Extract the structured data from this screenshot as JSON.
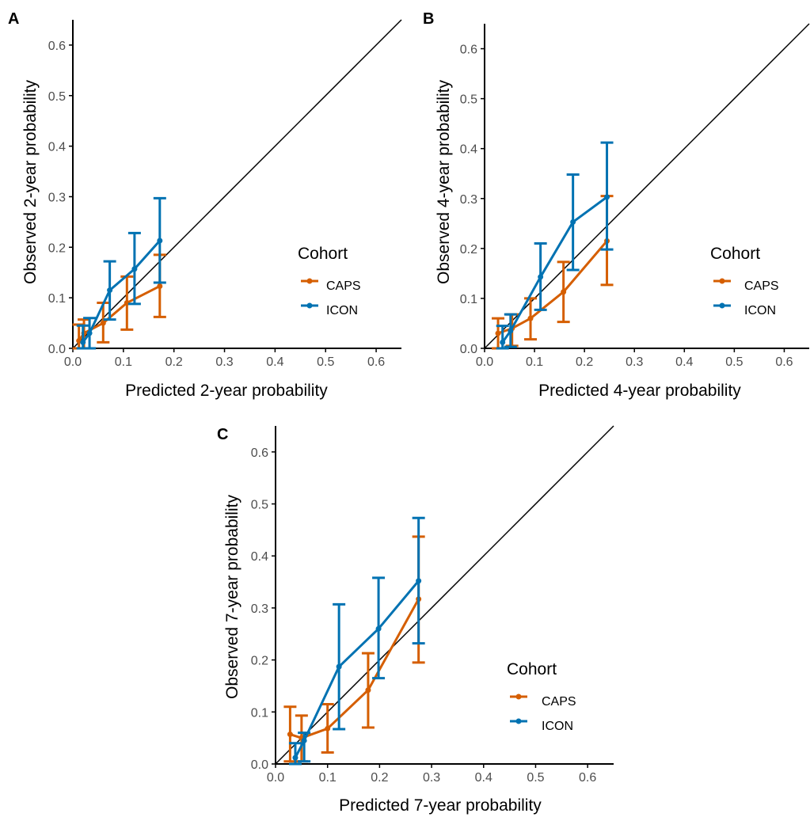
{
  "colors": {
    "CAPS": "#d55e00",
    "ICON": "#0072b2",
    "reference_line": "#000000",
    "axis": "#000000",
    "tick_text": "#4d4d4d"
  },
  "chart_data": [
    {
      "panel": "A",
      "type": "line",
      "xlabel": "Predicted 2-year probability",
      "ylabel": "Observed 2-year probability",
      "xlim": [
        0,
        0.65
      ],
      "ylim": [
        0,
        0.65
      ],
      "xticks": [
        "0.0",
        "0.1",
        "0.2",
        "0.3",
        "0.4",
        "0.5",
        "0.6"
      ],
      "yticks": [
        "0.0",
        "0.1",
        "0.2",
        "0.3",
        "0.4",
        "0.5",
        "0.6"
      ],
      "reference_line": "y = x",
      "legend": {
        "title": "Cohort",
        "entries": [
          "CAPS",
          "ICON"
        ],
        "position": "right"
      },
      "series": [
        {
          "name": "CAPS",
          "x": [
            0.012,
            0.022,
            0.06,
            0.107,
            0.172
          ],
          "y": [
            0.015,
            0.03,
            0.05,
            0.09,
            0.123
          ],
          "lower": [
            0.0,
            0.0,
            0.012,
            0.037,
            0.062
          ],
          "upper": [
            0.047,
            0.057,
            0.09,
            0.142,
            0.185
          ]
        },
        {
          "name": "ICON",
          "x": [
            0.02,
            0.033,
            0.073,
            0.122,
            0.172
          ],
          "y": [
            0.012,
            0.03,
            0.115,
            0.157,
            0.213
          ],
          "lower": [
            0.0,
            0.0,
            0.057,
            0.088,
            0.13
          ],
          "upper": [
            0.045,
            0.06,
            0.172,
            0.228,
            0.297
          ]
        }
      ]
    },
    {
      "panel": "B",
      "type": "line",
      "xlabel": "Predicted 4-year probability",
      "ylabel": "Observed 4-year probability",
      "xlim": [
        0,
        0.65
      ],
      "ylim": [
        0,
        0.65
      ],
      "xticks": [
        "0.0",
        "0.1",
        "0.2",
        "0.3",
        "0.4",
        "0.5",
        "0.6"
      ],
      "yticks": [
        "0.0",
        "0.1",
        "0.2",
        "0.3",
        "0.4",
        "0.5",
        "0.6"
      ],
      "reference_line": "y = x",
      "legend": {
        "title": "Cohort",
        "entries": [
          "CAPS",
          "ICON"
        ],
        "position": "right"
      },
      "series": [
        {
          "name": "CAPS",
          "x": [
            0.027,
            0.055,
            0.092,
            0.158,
            0.245
          ],
          "y": [
            0.03,
            0.04,
            0.06,
            0.113,
            0.215
          ],
          "lower": [
            0.0,
            0.005,
            0.018,
            0.053,
            0.127
          ],
          "upper": [
            0.06,
            0.068,
            0.1,
            0.173,
            0.305
          ]
        },
        {
          "name": "ICON",
          "x": [
            0.036,
            0.052,
            0.112,
            0.177,
            0.245
          ],
          "y": [
            0.012,
            0.035,
            0.143,
            0.253,
            0.303
          ],
          "lower": [
            0.0,
            0.003,
            0.077,
            0.157,
            0.198
          ],
          "upper": [
            0.045,
            0.068,
            0.21,
            0.348,
            0.412
          ]
        }
      ]
    },
    {
      "panel": "C",
      "type": "line",
      "xlabel": "Predicted 7-year probability",
      "ylabel": "Observed 7-year probability",
      "xlim": [
        0,
        0.65
      ],
      "ylim": [
        0,
        0.65
      ],
      "xticks": [
        "0.0",
        "0.1",
        "0.2",
        "0.3",
        "0.4",
        "0.5",
        "0.6"
      ],
      "yticks": [
        "0.0",
        "0.1",
        "0.2",
        "0.3",
        "0.4",
        "0.5",
        "0.6"
      ],
      "reference_line": "y = x",
      "legend": {
        "title": "Cohort",
        "entries": [
          "CAPS",
          "ICON"
        ],
        "position": "right"
      },
      "series": [
        {
          "name": "CAPS",
          "x": [
            0.028,
            0.05,
            0.1,
            0.178,
            0.275
          ],
          "y": [
            0.057,
            0.05,
            0.068,
            0.142,
            0.317
          ],
          "lower": [
            0.005,
            0.005,
            0.022,
            0.07,
            0.195
          ],
          "upper": [
            0.11,
            0.093,
            0.115,
            0.213,
            0.437
          ]
        },
        {
          "name": "ICON",
          "x": [
            0.038,
            0.055,
            0.122,
            0.198,
            0.275
          ],
          "y": [
            0.012,
            0.045,
            0.187,
            0.26,
            0.352
          ],
          "lower": [
            0.0,
            0.005,
            0.067,
            0.165,
            0.232
          ],
          "upper": [
            0.04,
            0.06,
            0.307,
            0.358,
            0.473
          ]
        }
      ]
    }
  ]
}
